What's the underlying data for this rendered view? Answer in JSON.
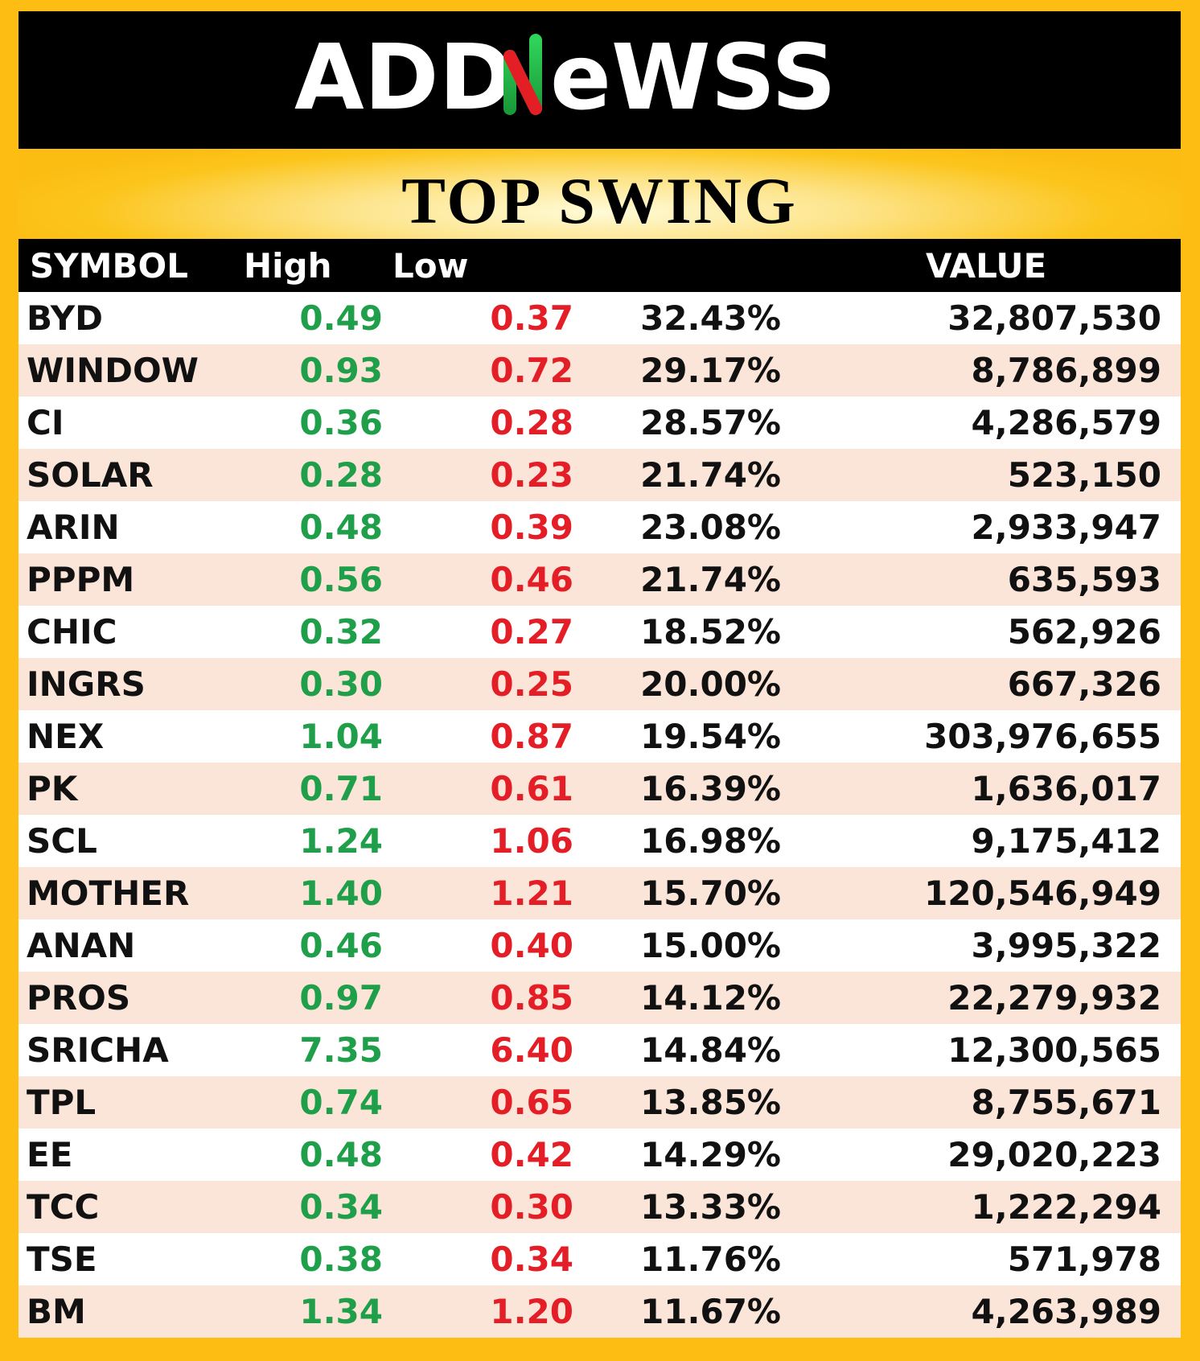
{
  "brand": {
    "name": "ADDNeWSS",
    "part1": "ADD",
    "part2": "N",
    "part3": "eWSS",
    "accent_green": "#21b24b",
    "accent_red": "#e31e24"
  },
  "title": "TOP SWING",
  "table": {
    "headers": [
      "SYMBOL",
      "High",
      "Low",
      "",
      "VALUE"
    ],
    "rows": [
      [
        "BYD",
        "0.49",
        "0.37",
        "32.43%",
        "32,807,530"
      ],
      [
        "WINDOW",
        "0.93",
        "0.72",
        "29.17%",
        "8,786,899"
      ],
      [
        "CI",
        "0.36",
        "0.28",
        "28.57%",
        "4,286,579"
      ],
      [
        "SOLAR",
        "0.28",
        "0.23",
        "21.74%",
        "523,150"
      ],
      [
        "ARIN",
        "0.48",
        "0.39",
        "23.08%",
        "2,933,947"
      ],
      [
        "PPPM",
        "0.56",
        "0.46",
        "21.74%",
        "635,593"
      ],
      [
        "CHIC",
        "0.32",
        "0.27",
        "18.52%",
        "562,926"
      ],
      [
        "INGRS",
        "0.30",
        "0.25",
        "20.00%",
        "667,326"
      ],
      [
        "NEX",
        "1.04",
        "0.87",
        "19.54%",
        "303,976,655"
      ],
      [
        "PK",
        "0.71",
        "0.61",
        "16.39%",
        "1,636,017"
      ],
      [
        "SCL",
        "1.24",
        "1.06",
        "16.98%",
        "9,175,412"
      ],
      [
        "MOTHER",
        "1.40",
        "1.21",
        "15.70%",
        "120,546,949"
      ],
      [
        "ANAN",
        "0.46",
        "0.40",
        "15.00%",
        "3,995,322"
      ],
      [
        "PROS",
        "0.97",
        "0.85",
        "14.12%",
        "22,279,932"
      ],
      [
        "SRICHA",
        "7.35",
        "6.40",
        "14.84%",
        "12,300,565"
      ],
      [
        "TPL",
        "0.74",
        "0.65",
        "13.85%",
        "8,755,671"
      ],
      [
        "EE",
        "0.48",
        "0.42",
        "14.29%",
        "29,020,223"
      ],
      [
        "TCC",
        "0.34",
        "0.30",
        "13.33%",
        "1,222,294"
      ],
      [
        "TSE",
        "0.38",
        "0.34",
        "11.76%",
        "571,978"
      ],
      [
        "BM",
        "1.34",
        "1.20",
        "11.67%",
        "4,263,989"
      ]
    ]
  },
  "colors": {
    "high": "#1f9f4a",
    "low": "#e41e26",
    "frame": "#fdbd12",
    "row_alt": "#fbe4d8"
  }
}
